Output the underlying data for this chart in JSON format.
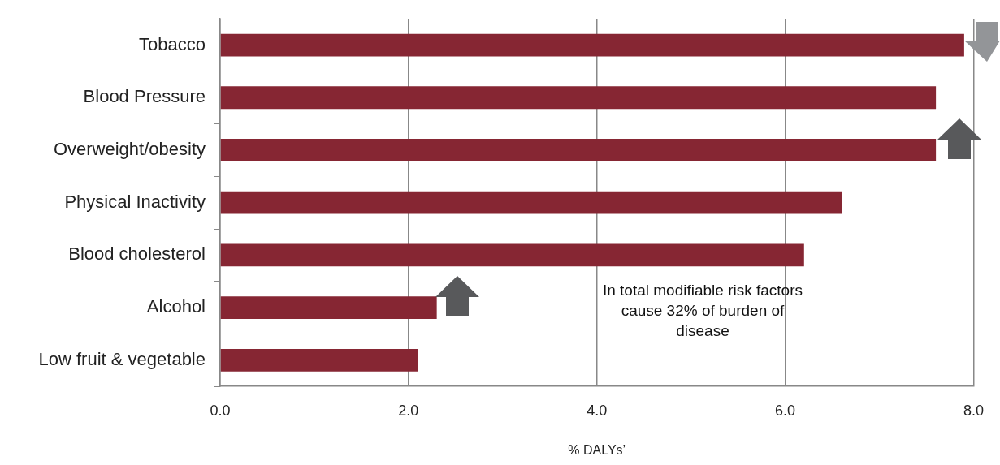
{
  "chart_data": {
    "type": "bar",
    "orientation": "horizontal",
    "categories": [
      "Tobacco",
      "Blood Pressure",
      "Overweight/obesity",
      "Physical Inactivity",
      "Blood cholesterol",
      "Alcohol",
      "Low fruit & vegetable"
    ],
    "values": [
      7.9,
      7.6,
      7.6,
      6.6,
      6.2,
      2.3,
      2.1
    ],
    "color": "#862633",
    "xlim": [
      0,
      8
    ],
    "xticks": [
      {
        "value": 0,
        "label": "0.0"
      },
      {
        "value": 2,
        "label": "2.0"
      },
      {
        "value": 4,
        "label": "4.0"
      },
      {
        "value": 6,
        "label": "6.0"
      },
      {
        "value": 8,
        "label": "8.0"
      }
    ],
    "xlabel": "% DALYs’",
    "grid": "x",
    "legend": false,
    "annotations": [
      "In total modifiable risk factors cause 32% of burden of disease"
    ]
  }
}
